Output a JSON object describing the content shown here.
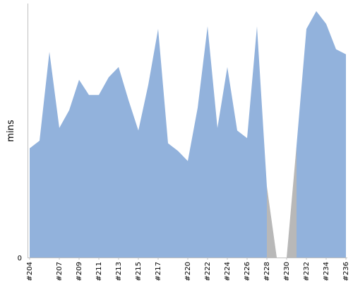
{
  "chart_data": {
    "type": "area",
    "title": "",
    "xlabel": "",
    "ylabel": "mins",
    "x": [
      "#204",
      "#205",
      "#206",
      "#207",
      "#208",
      "#209",
      "#210",
      "#211",
      "#212",
      "#213",
      "#214",
      "#215",
      "#216",
      "#217",
      "#218",
      "#219",
      "#220",
      "#221",
      "#222",
      "#223",
      "#224",
      "#225",
      "#226",
      "#227",
      "#228",
      "#229",
      "#230",
      "#231",
      "#232",
      "#233",
      "#234",
      "#235",
      "#236"
    ],
    "x_tick_labels": [
      "#204",
      "#207",
      "#209",
      "#211",
      "#213",
      "#215",
      "#217",
      "#220",
      "#222",
      "#224",
      "#226",
      "#228",
      "#230",
      "#232",
      "#234",
      "#236"
    ],
    "y_tick_labels": [
      "0"
    ],
    "ylim": [
      0,
      100
    ],
    "series": [
      {
        "values": [
          43,
          46,
          81,
          51,
          58,
          70,
          64,
          64,
          71,
          75,
          62,
          50,
          68,
          90,
          45,
          42,
          38,
          59,
          91,
          51,
          75,
          50,
          47,
          91,
          28,
          0,
          0,
          44,
          90,
          97,
          92,
          82,
          80
        ],
        "color": "#92b2dc"
      }
    ],
    "gap_color": "#b8b8b8",
    "grid": false,
    "legend": "none"
  }
}
